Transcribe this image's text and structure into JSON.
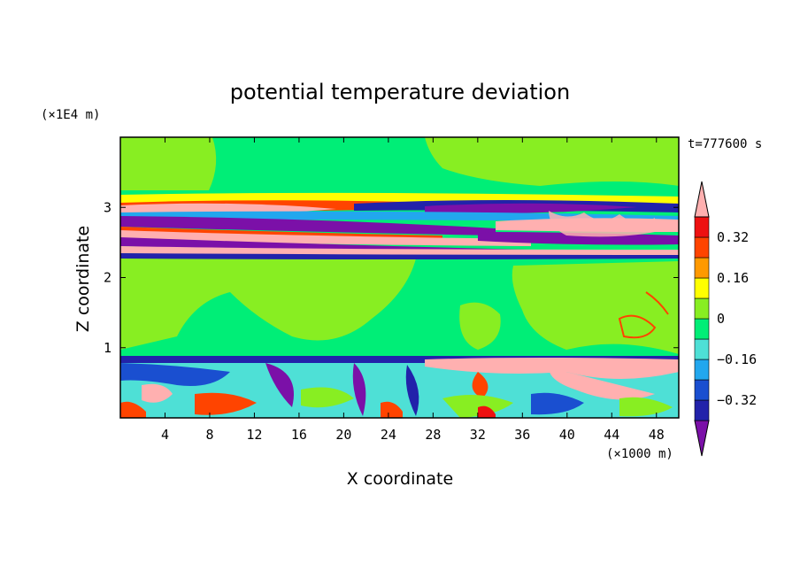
{
  "chart_data": {
    "type": "heatmap",
    "title": "potential temperature deviation",
    "xlabel": "X coordinate",
    "ylabel": "Z coordinate",
    "x_unit": "(×1000 m)",
    "y_unit": "(×1E4 m)",
    "time_label": "t=777600 s",
    "xlim": [
      0,
      50
    ],
    "ylim": [
      0,
      4
    ],
    "x_ticks": [
      4,
      8,
      12,
      16,
      20,
      24,
      28,
      32,
      36,
      40,
      44,
      48
    ],
    "y_ticks": [
      1,
      2,
      3
    ],
    "colorbar": {
      "levels": [
        -0.4,
        -0.32,
        -0.24,
        -0.16,
        -0.08,
        0,
        0.08,
        0.16,
        0.24,
        0.32,
        0.4
      ],
      "labels": [
        "0.32",
        "0.16",
        "0",
        "−0.16",
        "−0.32"
      ],
      "label_values": [
        0.32,
        0.16,
        0,
        -0.16,
        -0.32
      ],
      "colors": [
        "#7b10a8",
        "#2222aa",
        "#1a4fd0",
        "#22a7ee",
        "#4ee0d6",
        "#00ee77",
        "#88ee22",
        "#ffff00",
        "#ff9900",
        "#ff4400",
        "#ee1111",
        "#ffb0b0"
      ]
    },
    "layers": [
      {
        "z": [
          0.0,
          0.85
        ],
        "description_value": "mixed",
        "pattern": "turbulent"
      },
      {
        "z": [
          0.85,
          2.25
        ],
        "value": 0.0
      },
      {
        "z": [
          2.25,
          3.05
        ],
        "pattern": "banded"
      },
      {
        "z": [
          3.05,
          4.0
        ],
        "value": 0.0
      }
    ]
  }
}
